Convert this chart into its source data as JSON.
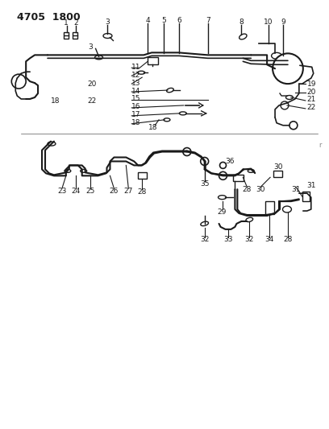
{
  "title": "4705  1800",
  "background_color": "#ffffff",
  "line_color": "#1a1a1a",
  "text_color": "#1a1a1a",
  "fig_width": 4.08,
  "fig_height": 5.33,
  "dpi": 100
}
